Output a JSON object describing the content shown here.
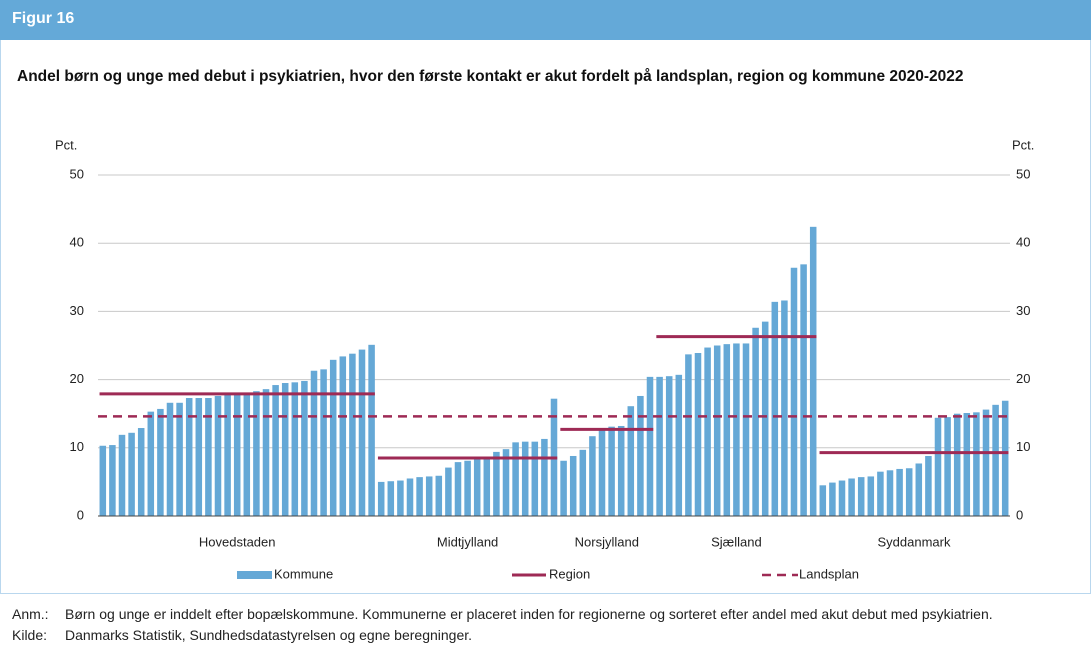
{
  "header": {
    "title": "Figur 16"
  },
  "chart_data": {
    "type": "bar",
    "title": "Andel børn og unge med debut i psykiatrien, hvor den første kontakt er akut fordelt på landsplan, region og kommune 2020-2022",
    "y_label": "Pct.",
    "y2_label": "Pct.",
    "ylim": [
      0,
      50
    ],
    "yticks": [
      0,
      10,
      20,
      30,
      40,
      50
    ],
    "y2lim": [
      0,
      50
    ],
    "y2ticks": [
      0,
      10,
      20,
      30,
      40,
      50
    ],
    "grid": true,
    "bar_color": "#65a8d6",
    "region_color": "#9e2a55",
    "landsplan_color": "#9e2a55",
    "legend": [
      "Kommune",
      "Region",
      "Landsplan"
    ],
    "landsplan": 14.6,
    "groups": [
      {
        "name": "Hovedstaden",
        "region": 17.9,
        "values": [
          10.3,
          10.4,
          11.9,
          12.2,
          12.9,
          15.3,
          15.7,
          16.6,
          16.6,
          17.3,
          17.3,
          17.3,
          17.6,
          17.8,
          18.0,
          18.1,
          18.3,
          18.6,
          19.2,
          19.5,
          19.6,
          19.8,
          21.3,
          21.5,
          22.9,
          23.4,
          23.8,
          24.4,
          25.1
        ]
      },
      {
        "name": "Midtjylland",
        "region": 8.5,
        "values": [
          5.0,
          5.1,
          5.2,
          5.5,
          5.7,
          5.8,
          5.9,
          7.1,
          7.9,
          8.1,
          8.5,
          8.7,
          9.4,
          9.8,
          10.8,
          10.9,
          10.9,
          11.3,
          17.2
        ]
      },
      {
        "name": "Norsjylland",
        "region": 12.7,
        "values": [
          8.1,
          8.8,
          9.7,
          11.7,
          12.8,
          13.1,
          13.2,
          16.1,
          17.6,
          20.4
        ]
      },
      {
        "name": "Sjælland",
        "region": 26.3,
        "values": [
          20.4,
          20.5,
          20.7,
          23.7,
          23.9,
          24.7,
          25.0,
          25.2,
          25.3,
          25.3,
          27.6,
          28.5,
          31.4,
          31.6,
          36.4,
          36.9,
          42.4
        ]
      },
      {
        "name": "Syddanmark",
        "region": 9.3,
        "values": [
          4.5,
          4.9,
          5.2,
          5.5,
          5.7,
          5.8,
          6.5,
          6.7,
          6.9,
          7.0,
          7.7,
          8.8,
          14.4,
          14.5,
          15.0,
          15.1,
          15.2,
          15.6,
          16.3,
          16.9
        ]
      }
    ]
  },
  "notes": [
    {
      "label": "Anm.:",
      "text": "Børn og unge er inddelt efter bopælskommune. Kommunerne er placeret inden for regionerne og sorteret efter andel med akut debut med psykiatrien."
    },
    {
      "label": "Kilde:",
      "text": "Danmarks Statistik, Sundhedsdatastyrelsen  og egne beregninger."
    }
  ]
}
